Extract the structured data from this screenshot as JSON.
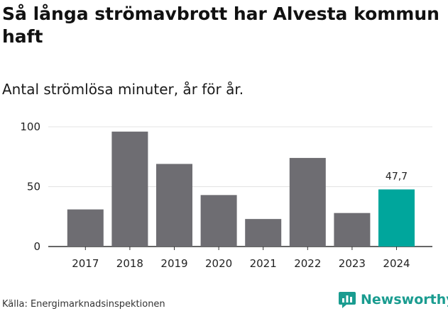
{
  "title": "Så långa strömavbrott har Alvesta kommun haft",
  "subtitle": "Antal strömlösa minuter, år för år.",
  "source": "Källa: Energimarknadsinspektionen",
  "brand": {
    "name": "Newsworthy",
    "icon": "newsworthy-logo-icon",
    "color": "#1a9c90"
  },
  "colors": {
    "bar": "#6e6d72",
    "highlight": "#00a69c",
    "grid": "#e3e3e3",
    "axis": "#333333"
  },
  "chart_data": {
    "type": "bar",
    "title": "Så långa strömavbrott har Alvesta kommun haft",
    "subtitle": "Antal strömlösa minuter, år för år.",
    "xlabel": "",
    "ylabel": "",
    "categories": [
      "2017",
      "2018",
      "2019",
      "2020",
      "2021",
      "2022",
      "2023",
      "2024"
    ],
    "values": [
      31,
      96,
      69,
      43,
      23,
      74,
      28,
      47.7
    ],
    "highlight_index": 7,
    "highlight_label": "47,7",
    "ylim": [
      0,
      100
    ],
    "yticks": [
      "0",
      "50",
      "100"
    ],
    "ytick_values": [
      0,
      50,
      100
    ],
    "grid": true
  }
}
